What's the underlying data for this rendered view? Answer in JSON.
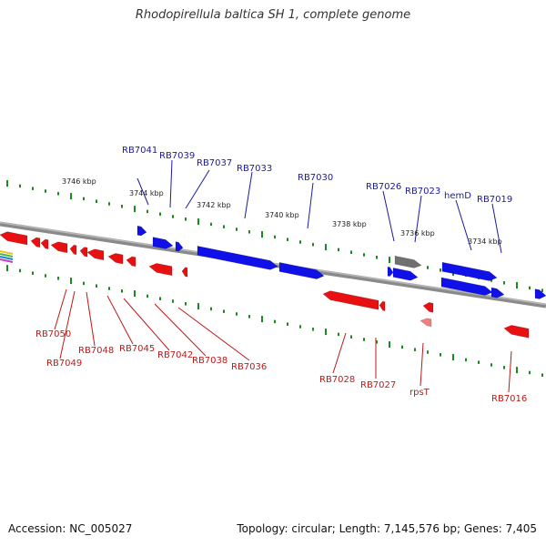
{
  "title": "Rhodopirellula baltica SH 1, complete genome",
  "footer": {
    "accession": "Accession: NC_005027",
    "summary": "Topology: circular; Length: 7,145,576 bp; Genes: 7,405"
  },
  "colors": {
    "forward_gene": "#1010e8",
    "reverse_gene": "#e81010",
    "other_gene": "#707070",
    "rna_gene": "#f08080",
    "ruler_tick": "#1a8a1a",
    "backbone": "#808080"
  },
  "ruler_labels": [
    "3746 kbp",
    "3744 kbp",
    "3742 kbp",
    "3740 kbp",
    "3738 kbp",
    "3736 kbp",
    "3734 kbp"
  ],
  "forward_gene_labels": [
    "RB7041",
    "RB7039",
    "RB7037",
    "RB7033",
    "RB7030",
    "RB7026",
    "RB7023",
    "hemD",
    "RB7019"
  ],
  "reverse_gene_labels": [
    "RB7050",
    "RB7049",
    "RB7048",
    "RB7045",
    "RB7042",
    "RB7038",
    "RB7036",
    "RB7028",
    "RB7027",
    "rpsT",
    "RB7016"
  ]
}
